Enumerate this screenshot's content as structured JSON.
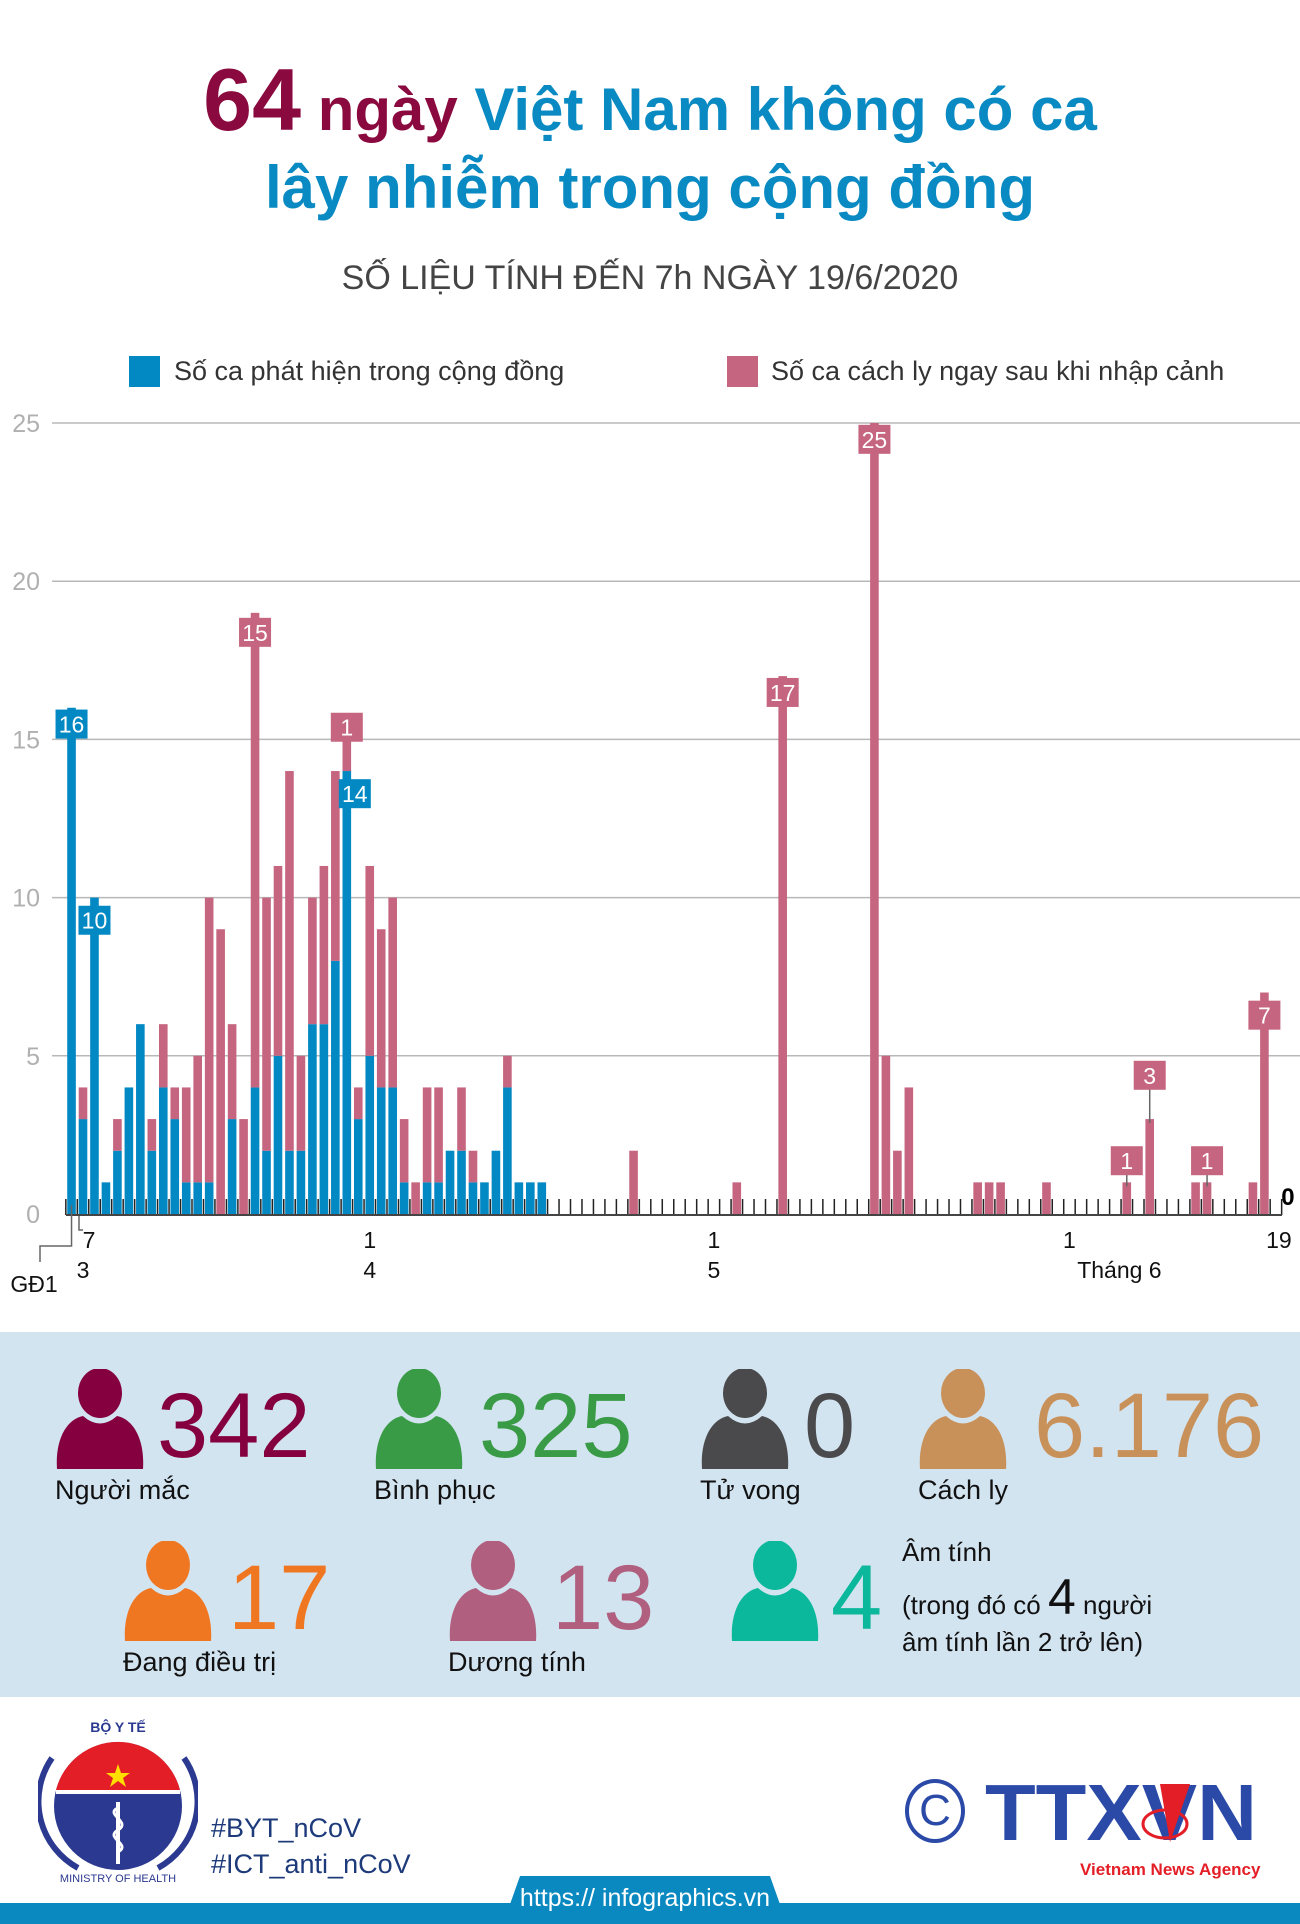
{
  "header": {
    "title_number": "64",
    "title_unit": "ngày",
    "title_rest_line1": "Việt Nam không có ca",
    "title_line2": "lây nhiễm trong cộng đồng",
    "subtitle": "SỐ LIỆU TÍNH ĐẾN 7h NGÀY 19/6/2020"
  },
  "colors": {
    "community": "#0288c3",
    "quarantine": "#c6657f",
    "title_accent": "#8a0a3f",
    "title_blue": "#0a8ac2"
  },
  "chart_data": {
    "type": "bar",
    "stacked": true,
    "title": "",
    "xlabel": "",
    "ylabel": "",
    "ylim": [
      0,
      25
    ],
    "yticks": [
      "0",
      "5",
      "10",
      "15",
      "20",
      "25"
    ],
    "grid": true,
    "legend_placement": "top",
    "series": [
      {
        "key": "community",
        "name": "Số ca phát hiện trong cộng đồng",
        "color": "#0288c3"
      },
      {
        "key": "quarantine",
        "name": "Số ca cách ly ngay sau khi nhập cảnh",
        "color": "#c6657f"
      }
    ],
    "x_range": [
      "GĐ1",
      "19/6"
    ],
    "x_tick_labels": [
      {
        "date": "GĐ1",
        "day": "GĐ1",
        "month": ""
      },
      {
        "date": "7/3",
        "day": "7",
        "month": "3"
      },
      {
        "date": "1/4",
        "day": "1",
        "month": "4"
      },
      {
        "date": "1/5",
        "day": "1",
        "month": "5"
      },
      {
        "date": "1/6",
        "day": "1",
        "month": "Tháng 6"
      },
      {
        "date": "19/6",
        "day": "19",
        "month": ""
      }
    ],
    "days": [
      {
        "date": "GĐ1",
        "community": 16,
        "quarantine": 0
      },
      {
        "date": "7/3",
        "community": 3,
        "quarantine": 1
      },
      {
        "date": "8/3",
        "community": 10,
        "quarantine": 0
      },
      {
        "date": "9/3",
        "community": 1,
        "quarantine": 0
      },
      {
        "date": "10/3",
        "community": 2,
        "quarantine": 1
      },
      {
        "date": "11/3",
        "community": 4,
        "quarantine": 0
      },
      {
        "date": "12/3",
        "community": 6,
        "quarantine": 0
      },
      {
        "date": "13/3",
        "community": 2,
        "quarantine": 1
      },
      {
        "date": "14/3",
        "community": 4,
        "quarantine": 2
      },
      {
        "date": "15/3",
        "community": 3,
        "quarantine": 1
      },
      {
        "date": "16/3",
        "community": 1,
        "quarantine": 3
      },
      {
        "date": "17/3",
        "community": 1,
        "quarantine": 4
      },
      {
        "date": "18/3",
        "community": 1,
        "quarantine": 9
      },
      {
        "date": "19/3",
        "community": 0,
        "quarantine": 9
      },
      {
        "date": "20/3",
        "community": 3,
        "quarantine": 3
      },
      {
        "date": "21/3",
        "community": 0,
        "quarantine": 3
      },
      {
        "date": "22/3",
        "community": 4,
        "quarantine": 15
      },
      {
        "date": "23/3",
        "community": 2,
        "quarantine": 8
      },
      {
        "date": "24/3",
        "community": 5,
        "quarantine": 6
      },
      {
        "date": "25/3",
        "community": 2,
        "quarantine": 12
      },
      {
        "date": "26/3",
        "community": 2,
        "quarantine": 3
      },
      {
        "date": "27/3",
        "community": 6,
        "quarantine": 4
      },
      {
        "date": "28/3",
        "community": 6,
        "quarantine": 5
      },
      {
        "date": "29/3",
        "community": 8,
        "quarantine": 6
      },
      {
        "date": "30/3",
        "community": 14,
        "quarantine": 1
      },
      {
        "date": "31/3",
        "community": 3,
        "quarantine": 1
      },
      {
        "date": "1/4",
        "community": 5,
        "quarantine": 6
      },
      {
        "date": "2/4",
        "community": 4,
        "quarantine": 5
      },
      {
        "date": "3/4",
        "community": 4,
        "quarantine": 6
      },
      {
        "date": "4/4",
        "community": 1,
        "quarantine": 2
      },
      {
        "date": "5/4",
        "community": 0,
        "quarantine": 1
      },
      {
        "date": "6/4",
        "community": 1,
        "quarantine": 3
      },
      {
        "date": "7/4",
        "community": 1,
        "quarantine": 3
      },
      {
        "date": "8/4",
        "community": 2,
        "quarantine": 0
      },
      {
        "date": "9/4",
        "community": 2,
        "quarantine": 2
      },
      {
        "date": "10/4",
        "community": 1,
        "quarantine": 1
      },
      {
        "date": "11/4",
        "community": 1,
        "quarantine": 0
      },
      {
        "date": "12/4",
        "community": 2,
        "quarantine": 0
      },
      {
        "date": "13/4",
        "community": 4,
        "quarantine": 1
      },
      {
        "date": "14/4",
        "community": 1,
        "quarantine": 0
      },
      {
        "date": "15/4",
        "community": 1,
        "quarantine": 0
      },
      {
        "date": "16/4",
        "community": 1,
        "quarantine": 0
      },
      {
        "date": "24/4",
        "community": 0,
        "quarantine": 2
      },
      {
        "date": "3/5",
        "community": 0,
        "quarantine": 1
      },
      {
        "date": "7/5",
        "community": 0,
        "quarantine": 17
      },
      {
        "date": "15/5",
        "community": 0,
        "quarantine": 25
      },
      {
        "date": "16/5",
        "community": 0,
        "quarantine": 5
      },
      {
        "date": "17/5",
        "community": 0,
        "quarantine": 2
      },
      {
        "date": "18/5",
        "community": 0,
        "quarantine": 4
      },
      {
        "date": "24/5",
        "community": 0,
        "quarantine": 1
      },
      {
        "date": "25/5",
        "community": 0,
        "quarantine": 1
      },
      {
        "date": "26/5",
        "community": 0,
        "quarantine": 1
      },
      {
        "date": "30/5",
        "community": 0,
        "quarantine": 1
      },
      {
        "date": "6/6",
        "community": 0,
        "quarantine": 1
      },
      {
        "date": "8/6",
        "community": 0,
        "quarantine": 3
      },
      {
        "date": "12/6",
        "community": 0,
        "quarantine": 1
      },
      {
        "date": "13/6",
        "community": 0,
        "quarantine": 1
      },
      {
        "date": "17/6",
        "community": 0,
        "quarantine": 1
      },
      {
        "date": "18/6",
        "community": 0,
        "quarantine": 7
      },
      {
        "date": "19/6",
        "community": 0,
        "quarantine": 0
      }
    ],
    "annotations": [
      {
        "date": "GĐ1",
        "text": "16",
        "series": "community"
      },
      {
        "date": "8/3",
        "text": "10",
        "series": "community"
      },
      {
        "date": "22/3",
        "text": "15",
        "series": "quarantine"
      },
      {
        "date": "30/3",
        "text": "1",
        "series": "quarantine"
      },
      {
        "date": "30/3",
        "text": "14",
        "series": "community"
      },
      {
        "date": "7/5",
        "text": "17",
        "series": "quarantine"
      },
      {
        "date": "15/5",
        "text": "25",
        "series": "quarantine"
      },
      {
        "date": "6/6",
        "text": "1",
        "series": "quarantine"
      },
      {
        "date": "8/6",
        "text": "3",
        "series": "quarantine"
      },
      {
        "date": "13/6",
        "text": "1",
        "series": "quarantine"
      },
      {
        "date": "18/6",
        "text": "7",
        "series": "quarantine"
      },
      {
        "date": "19/6",
        "text": "0",
        "series": "none"
      }
    ]
  },
  "stats": {
    "infected": {
      "value": "342",
      "label": "Người mắc",
      "color": "#85003f"
    },
    "recovered": {
      "value": "325",
      "label": "Bình phục",
      "color": "#3a9b46"
    },
    "deaths": {
      "value": "0",
      "label": "Tử vong",
      "color": "#4a4a4c"
    },
    "quarantined": {
      "value": "6.176",
      "label": "Cách ly",
      "color": "#c9915a"
    },
    "treating": {
      "value": "17",
      "label": "Đang điều trị",
      "color": "#f07722"
    },
    "positive": {
      "value": "13",
      "label": "Dương tính",
      "color": "#b0607e"
    },
    "negative": {
      "value": "4",
      "color": "#0bb89b",
      "line1": "Âm tính",
      "line2_pre": "(trong đó có",
      "line2_num": "4",
      "line2_post": "người",
      "line3": "âm tính lần 2 trở lên)"
    }
  },
  "footer": {
    "moh_logo_top": "BỘ Y TẾ",
    "moh_logo_bottom": "MINISTRY OF HEALTH",
    "hashtag1": "#BYT_nCoV",
    "hashtag2": "#ICT_anti_nCoV",
    "copyright": "©",
    "agency_logo": "TTXVN",
    "agency_name": "Vietnam News Agency",
    "url": "https:// infographics.vn"
  }
}
